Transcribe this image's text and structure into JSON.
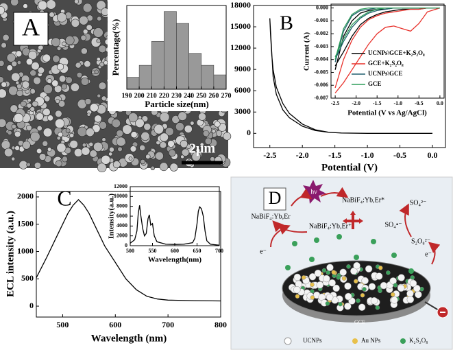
{
  "panels": {
    "a": "A",
    "b": "B",
    "c": "C",
    "d": "D"
  },
  "scale_bar": "2μm",
  "chart_data": [
    {
      "type": "histogram",
      "xlabel": "Particle size(nm)",
      "ylabel": "Percentage(%)",
      "bins": [
        190,
        200,
        210,
        220,
        230,
        240,
        250,
        260,
        270
      ],
      "values": [
        1,
        2,
        4,
        6.5,
        5.5,
        3,
        2,
        1.2
      ],
      "color": "#999999",
      "xlim": [
        190,
        270
      ],
      "ylim": [
        0,
        7
      ],
      "xticks": [
        190,
        200,
        210,
        220,
        230,
        240,
        250,
        260,
        270
      ]
    },
    {
      "type": "line",
      "xlabel": "Potential (V)",
      "x": [
        0,
        -0.5,
        -1.0,
        -1.4,
        -1.6,
        -1.8,
        -2.0,
        -2.2,
        -2.3,
        -2.4,
        -2.45,
        -2.5,
        -2.49,
        -2.47,
        -2.45,
        -2.4,
        -2.3,
        -2.2,
        -2.0,
        -1.8,
        -1.6,
        -1.4,
        -1.0,
        0
      ],
      "series": [
        {
          "color": "#000000",
          "values": [
            0,
            0,
            0,
            50,
            150,
            400,
            1000,
            2200,
            3300,
            5500,
            8000,
            16200,
            14000,
            11000,
            9000,
            6500,
            4200,
            2800,
            1300,
            500,
            150,
            50,
            0,
            0
          ]
        }
      ],
      "xlim": [
        -2.75,
        0.2
      ],
      "ylim": [
        -2000,
        18000
      ],
      "xticks": [
        -2.5,
        {
          "value": -2,
          "label": "-2.0"
        },
        -1.5,
        {
          "value": -1,
          "label": "-1.0"
        },
        -0.5,
        {
          "value": 0,
          "label": "0.0"
        }
      ],
      "yticks": [
        0,
        3000,
        6000,
        9000,
        12000,
        15000,
        18000
      ]
    },
    {
      "type": "line",
      "xlabel": "Potential (V vs Ag/AgCl)",
      "ylabel": "Current (A)",
      "legend": "lower left",
      "x": [
        -2.5,
        -2.3,
        -2.1,
        -1.9,
        -1.7,
        -1.5,
        -1.3,
        -1.1,
        -0.9,
        -0.7,
        -0.5,
        -0.3,
        -0.1,
        0,
        -0.1,
        -0.3,
        -0.5,
        -0.7,
        -0.9,
        -1.1,
        -1.3,
        -1.5,
        -1.7,
        -1.9,
        -2.1,
        -2.3,
        -2.5
      ],
      "series": [
        {
          "name": "UCNPs\\GCE+K₂S₂O₈",
          "color": "#000000",
          "values": [
            -0.0048,
            -0.0022,
            -0.001,
            -0.0004,
            -0.0002,
            -0.0001,
            -0.0001,
            0,
            0,
            0,
            0,
            0,
            0,
            0,
            0,
            0,
            -0.0001,
            -0.0001,
            -0.0001,
            -0.0002,
            -0.0003,
            -0.0005,
            -0.0008,
            -0.0013,
            -0.0022,
            -0.0034,
            -0.0045
          ]
        },
        {
          "name": "GCE+K₂S₂O₈",
          "color": "#e8302a",
          "values": [
            -0.0062,
            -0.004,
            -0.0025,
            -0.0015,
            -0.0009,
            -0.0006,
            -0.0004,
            -0.0003,
            -0.0002,
            -0.0001,
            -0.0001,
            0,
            0,
            0,
            -0.0001,
            -0.0003,
            -0.0012,
            -0.0018,
            -0.0016,
            -0.0014,
            -0.0015,
            -0.002,
            -0.0028,
            -0.0038,
            -0.0048,
            -0.0058,
            -0.0066
          ]
        },
        {
          "name": "UCNPs\\GCE",
          "color": "#1f5f6e",
          "values": [
            -0.0042,
            -0.0018,
            -0.0006,
            -0.0002,
            -0.0001,
            0,
            0,
            0,
            0,
            0,
            0,
            0,
            0,
            0,
            0,
            0,
            0,
            0,
            0,
            0,
            -0.0001,
            -0.0002,
            -0.0004,
            -0.0008,
            -0.0015,
            -0.0026,
            -0.004
          ]
        },
        {
          "name": "GCE",
          "color": "#2e9e5a",
          "values": [
            -0.004,
            -0.0016,
            -0.0005,
            -0.0001,
            0,
            0,
            0,
            0,
            0,
            0,
            0,
            0,
            0,
            0,
            0,
            0,
            0,
            0,
            0,
            0,
            0,
            -0.0001,
            -0.0003,
            -0.0007,
            -0.0013,
            -0.0024,
            -0.0038
          ]
        }
      ],
      "xlim": [
        -2.6,
        0.1
      ],
      "ylim": [
        -0.007,
        0.0003
      ],
      "xticks": [
        -2.5,
        {
          "value": -2,
          "label": "-2.0"
        },
        -1.5,
        {
          "value": -1,
          "label": "-1.0"
        },
        -0.5,
        {
          "value": 0,
          "label": "0.0"
        }
      ],
      "yticks": [
        {
          "value": 0,
          "label": "0.000"
        },
        {
          "value": -0.001,
          "label": "-0.001"
        },
        {
          "value": -0.002,
          "label": "-0.002"
        },
        {
          "value": -0.003,
          "label": "-0.003"
        },
        {
          "value": -0.004,
          "label": "-0.004"
        },
        {
          "value": -0.005,
          "label": "-0.005"
        },
        {
          "value": -0.006,
          "label": "-0.006"
        },
        {
          "value": -0.007,
          "label": "-0.007"
        }
      ]
    },
    {
      "type": "line",
      "xlabel": "Wavelength (nm)",
      "ylabel": "ECL intensity (a.u.)",
      "x": [
        450,
        470,
        490,
        510,
        520,
        530,
        540,
        550,
        560,
        580,
        600,
        620,
        640,
        660,
        680,
        700,
        750,
        800
      ],
      "series": [
        {
          "color": "#000000",
          "values": [
            520,
            900,
            1300,
            1700,
            1850,
            1950,
            1850,
            1700,
            1500,
            1100,
            800,
            500,
            300,
            180,
            130,
            110,
            100,
            95
          ]
        }
      ],
      "xlim": [
        450,
        800
      ],
      "ylim": [
        -200,
        2100
      ],
      "xticks": [
        500,
        600,
        700,
        800
      ],
      "yticks": [
        0,
        500,
        1000,
        1500,
        2000
      ]
    },
    {
      "type": "line",
      "xlabel": "Wavelength(nm)",
      "ylabel": "Intensity(a.u.)",
      "x": [
        500,
        510,
        515,
        518,
        521,
        524,
        528,
        532,
        536,
        540,
        543,
        546,
        550,
        554,
        560,
        580,
        600,
        620,
        640,
        645,
        650,
        653,
        656,
        660,
        664,
        668,
        672,
        680,
        700
      ],
      "series": [
        {
          "color": "#000000",
          "values": [
            500,
            1200,
            3000,
            6500,
            8200,
            6000,
            3500,
            2000,
            2500,
            5500,
            6300,
            4200,
            4500,
            2000,
            800,
            300,
            250,
            300,
            600,
            1500,
            4500,
            7000,
            7900,
            7500,
            6000,
            3000,
            1000,
            300,
            100
          ]
        }
      ],
      "xlim": [
        500,
        700
      ],
      "ylim": [
        0,
        12000
      ],
      "xticks": [
        500,
        550,
        600,
        650,
        700
      ],
      "yticks": [
        0,
        2000,
        4000,
        6000,
        8000,
        10000,
        12000
      ]
    }
  ],
  "diagram": {
    "light": "hν",
    "excited": "NaBiF₄:Yb,Er*",
    "ground": "NaBiF₄:Yb,Er",
    "oxidized": "NaBiF₄:Yb,Er⁺",
    "radical": "SO₄•⁻",
    "sulfate": "SO₄²⁻",
    "persulfate": "S₂O₈²⁻",
    "electron_left": "e⁻",
    "electron_right": "e⁻",
    "electrode": "GCE",
    "legend": [
      "UCNPs",
      "Au NPs",
      "K₂S₂O₈"
    ]
  }
}
